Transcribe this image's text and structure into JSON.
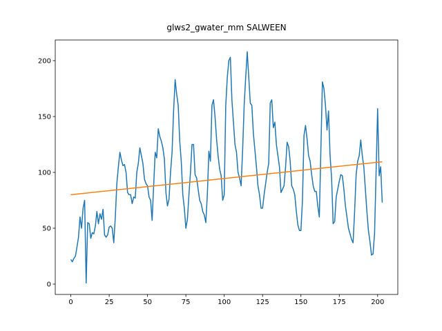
{
  "chart_data": {
    "type": "line",
    "title": "glws2_gwater_mm SALWEEN",
    "xlim": [
      -10.15,
      213.15
    ],
    "ylim": [
      -9.26,
      218.5
    ],
    "xticks": [
      0,
      25,
      50,
      75,
      100,
      125,
      150,
      175,
      200
    ],
    "yticks": [
      0,
      50,
      100,
      150,
      200
    ],
    "series": [
      {
        "color": "#1f77b4",
        "x": [
          0,
          1,
          2,
          3,
          4,
          5,
          6,
          7,
          8,
          9,
          10,
          11,
          12,
          13,
          14,
          15,
          16,
          17,
          18,
          19,
          20,
          21,
          22,
          23,
          24,
          25,
          26,
          27,
          28,
          29,
          30,
          31,
          32,
          33,
          34,
          35,
          36,
          37,
          38,
          39,
          40,
          41,
          42,
          43,
          44,
          45,
          46,
          47,
          48,
          49,
          50,
          51,
          52,
          53,
          54,
          55,
          56,
          57,
          58,
          59,
          60,
          61,
          62,
          63,
          64,
          65,
          66,
          67,
          68,
          69,
          70,
          71,
          72,
          73,
          74,
          75,
          76,
          77,
          78,
          79,
          80,
          81,
          82,
          83,
          84,
          85,
          86,
          87,
          88,
          89,
          90,
          91,
          92,
          93,
          94,
          95,
          96,
          97,
          98,
          99,
          100,
          101,
          102,
          103,
          104,
          105,
          106,
          107,
          108,
          109,
          110,
          111,
          112,
          113,
          114,
          115,
          116,
          117,
          118,
          119,
          120,
          121,
          122,
          123,
          124,
          125,
          126,
          127,
          128,
          129,
          130,
          131,
          132,
          133,
          134,
          135,
          136,
          137,
          138,
          139,
          140,
          141,
          142,
          143,
          144,
          145,
          146,
          147,
          148,
          149,
          150,
          151,
          152,
          153,
          154,
          155,
          156,
          157,
          158,
          159,
          160,
          161,
          162,
          163,
          164,
          165,
          166,
          167,
          168,
          169,
          170,
          171,
          172,
          173,
          174,
          175,
          176,
          177,
          178,
          179,
          180,
          181,
          182,
          183,
          184,
          185,
          186,
          187,
          188,
          189,
          190,
          191,
          192,
          193,
          194,
          195,
          196,
          197,
          198,
          199,
          200,
          201,
          202,
          203
        ],
        "values": [
          22,
          20,
          23,
          25,
          33,
          42,
          60,
          50,
          68,
          75,
          1,
          55,
          54,
          41,
          46,
          45,
          52,
          65,
          54,
          63,
          58,
          67,
          44,
          42,
          44,
          51,
          52,
          50,
          37,
          60,
          90,
          105,
          118,
          111,
          106,
          107,
          100,
          82,
          80,
          80,
          72,
          78,
          77,
          100,
          108,
          122,
          115,
          108,
          94,
          90,
          88,
          78,
          75,
          57,
          88,
          118,
          113,
          139,
          132,
          128,
          122,
          112,
          82,
          70,
          76,
          100,
          118,
          155,
          183,
          170,
          160,
          128,
          110,
          80,
          68,
          50,
          58,
          80,
          100,
          125,
          125,
          98,
          95,
          85,
          75,
          72,
          65,
          62,
          55,
          80,
          119,
          110,
          160,
          165,
          150,
          130,
          115,
          103,
          97,
          75,
          80,
          160,
          185,
          200,
          203,
          165,
          145,
          125,
          118,
          100,
          95,
          88,
          120,
          160,
          185,
          208,
          185,
          162,
          160,
          135,
          120,
          105,
          88,
          80,
          68,
          68,
          80,
          90,
          100,
          108,
          162,
          165,
          140,
          145,
          125,
          115,
          105,
          82,
          85,
          88,
          105,
          127,
          123,
          110,
          88,
          85,
          80,
          65,
          53,
          48,
          48,
          75,
          133,
          142,
          130,
          115,
          110,
          98,
          88,
          83,
          83,
          70,
          60,
          120,
          181,
          175,
          160,
          138,
          155,
          115,
          95,
          54,
          56,
          78,
          85,
          92,
          98,
          97,
          85,
          70,
          60,
          50,
          45,
          40,
          37,
          65,
          98,
          110,
          115,
          129,
          115,
          105,
          85,
          65,
          48,
          38,
          26,
          27,
          45,
          100,
          157,
          97,
          105,
          73
        ]
      },
      {
        "color": "#ff7f0e",
        "x": [
          0,
          203
        ],
        "values": [
          80,
          109.5
        ]
      }
    ]
  }
}
